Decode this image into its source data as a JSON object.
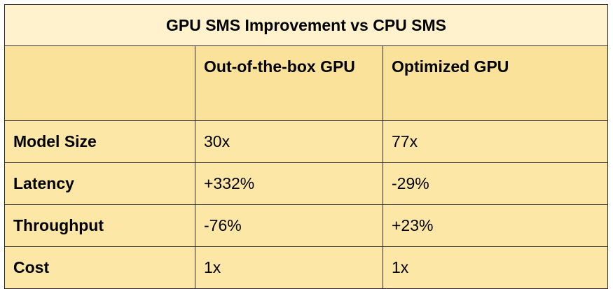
{
  "table": {
    "title": "GPU SMS Improvement vs CPU SMS",
    "columns": [
      "",
      "Out-of-the-box GPU",
      "Optimized GPU"
    ],
    "rows": [
      {
        "label": "Model Size",
        "oob": "30x",
        "optimized": "77x"
      },
      {
        "label": "Latency",
        "oob": "+332%",
        "optimized": "-29%"
      },
      {
        "label": "Throughput",
        "oob": "-76%",
        "optimized": "+23%"
      },
      {
        "label": "Cost",
        "oob": "1x",
        "optimized": "1x"
      }
    ]
  },
  "colors": {
    "title_bg": "#fff2cc",
    "header_bg": "#fbe29b",
    "row_bg": "#fde7a7",
    "border": "#2b2b2b"
  }
}
